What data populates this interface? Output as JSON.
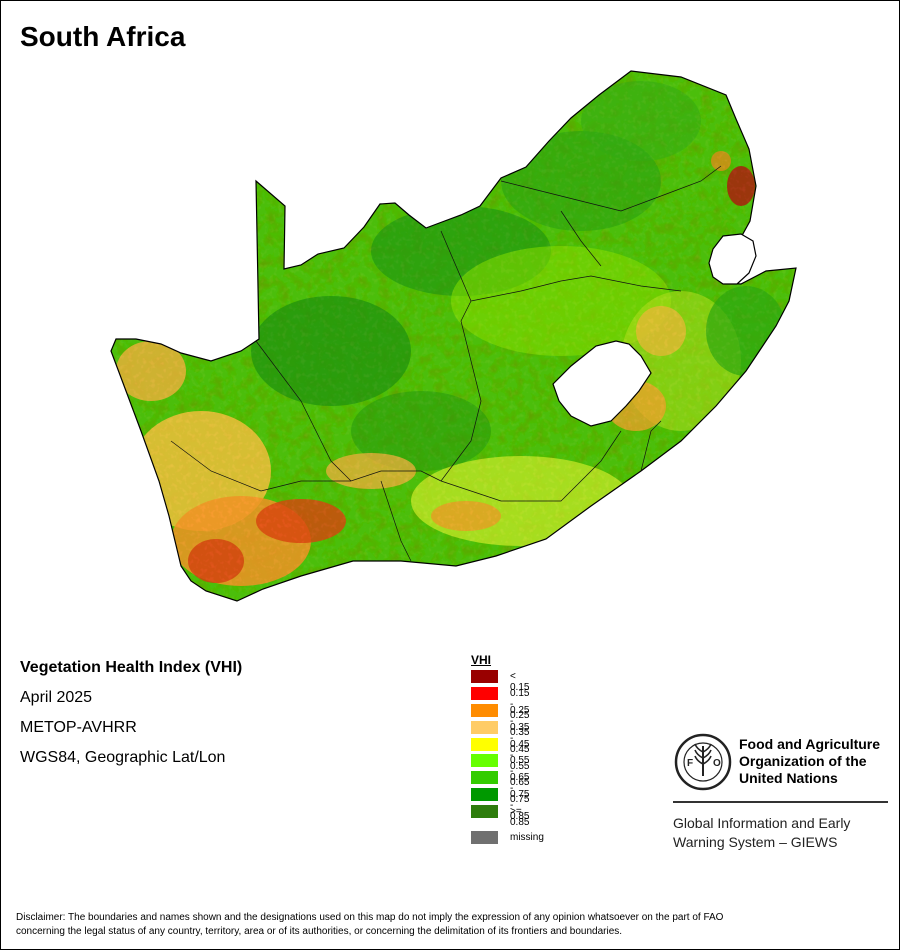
{
  "map": {
    "title": "South Africa",
    "index_name": "Vegetation Health Index (VHI)",
    "period": "April 2025",
    "sensor": "METOP-AVHRR",
    "projection": "WGS84, Geographic Lat/Lon"
  },
  "legend": {
    "title": "VHI",
    "classes": [
      {
        "label": "< 0.15",
        "color": "#990000"
      },
      {
        "label": "0.15 - 0.25",
        "color": "#ff0000"
      },
      {
        "label": "0.25 - 0.35",
        "color": "#ff8c00"
      },
      {
        "label": "0.35 - 0.45",
        "color": "#ffcc66"
      },
      {
        "label": "0.45 - 0.55",
        "color": "#ffff00"
      },
      {
        "label": "0.55 - 0.65",
        "color": "#66ff00"
      },
      {
        "label": "0.65 - 0.75",
        "color": "#33cc00"
      },
      {
        "label": "0.75 - 0.85",
        "color": "#009900"
      },
      {
        "label": ">= 0.85",
        "color": "#2e7d0d"
      }
    ],
    "missing": {
      "label": "missing",
      "color": "#707070"
    }
  },
  "logo": {
    "org_line1": "Food and Agriculture",
    "org_line2": "Organization of the",
    "org_line3": "United Nations",
    "giews_line1": "Global Information and Early",
    "giews_line2": "Warning System – GIEWS",
    "icon": "fao-ear-of-wheat-icon"
  },
  "disclaimer": {
    "line1": "Disclaimer: The boundaries and names shown and the designations used on this map do not imply the expression of any opinion whatsoever on the part of FAO",
    "line2": "concerning the legal status of any country, territory, area or of its authorities, or concerning the delimitation of its frontiers and boundaries."
  }
}
